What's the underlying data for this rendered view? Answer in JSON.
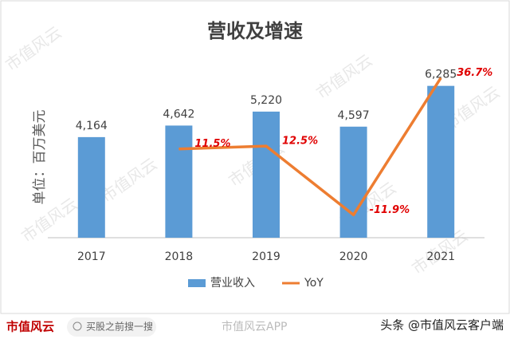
{
  "chart_data": {
    "type": "bar",
    "title": "营收及增速",
    "y_label": "单位：百万美元",
    "categories": [
      "2017",
      "2018",
      "2019",
      "2020",
      "2021"
    ],
    "series": [
      {
        "name": "营业收入",
        "color": "#5b9bd5",
        "values": [
          4164,
          4642,
          5220,
          4597,
          6285
        ],
        "value_labels": [
          "4,164",
          "4,642",
          "5,220",
          "4,597",
          "6,285"
        ]
      },
      {
        "name": "YoY",
        "type": "line",
        "axis": "y2",
        "color": "#ed7d31",
        "values": [
          null,
          11.5,
          12.5,
          -11.9,
          36.7
        ],
        "value_labels": [
          null,
          "11.5%",
          "12.5%",
          "-11.9%",
          "36.7%"
        ]
      }
    ],
    "ylim": [
      0,
      7000
    ],
    "y2lim": [
      -20,
      40
    ],
    "legend": "bottom"
  },
  "watermark": "市值风云",
  "footer": {
    "logo": "市值风云",
    "search": "买股之前搜一搜",
    "app": "市值风云APP",
    "source": "头条 @市值风云客户端"
  }
}
